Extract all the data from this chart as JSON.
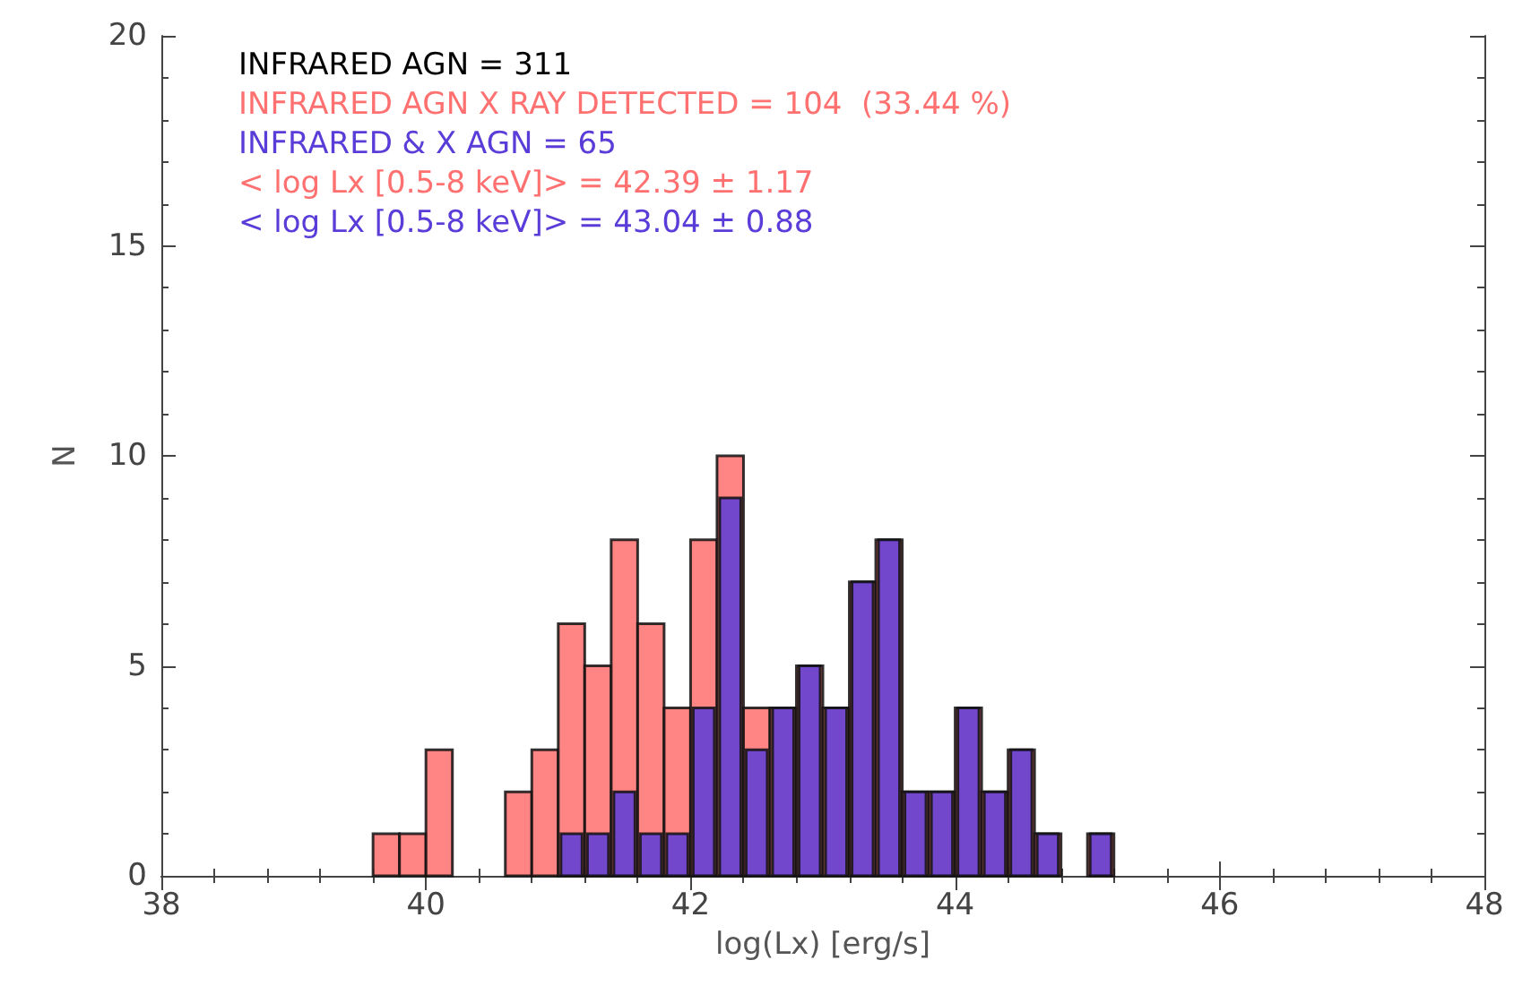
{
  "chart_data": {
    "type": "histogram",
    "xlabel": "log(Lx) [erg/s]",
    "ylabel": "N",
    "bins": [
      39.6,
      39.8,
      40.0,
      40.2,
      40.4,
      40.6,
      40.8,
      41.0,
      41.2,
      41.4,
      41.6,
      41.8,
      42.0,
      42.2,
      42.4,
      42.6,
      42.8,
      43.0,
      43.2,
      43.4,
      43.6,
      43.8,
      44.0,
      44.2,
      44.4,
      44.6,
      44.8,
      45.0,
      45.2
    ],
    "series": [
      {
        "name": "INFRARED AGN X RAY DETECTED = 104  (33.44 %)",
        "color": "#ff7070",
        "values": [
          1,
          1,
          3,
          0,
          0,
          2,
          3,
          6,
          5,
          8,
          6,
          4,
          8,
          10,
          4,
          4,
          5,
          4,
          7,
          8,
          2,
          2,
          4,
          2,
          3,
          1,
          0,
          1
        ]
      },
      {
        "name": "INFRARED & X AGN = 65",
        "color": "#5a3cd8",
        "values": [
          0,
          0,
          0,
          0,
          0,
          0,
          0,
          1,
          1,
          2,
          1,
          1,
          4,
          9,
          3,
          4,
          5,
          4,
          7,
          8,
          2,
          2,
          4,
          2,
          3,
          1,
          0,
          1
        ]
      }
    ],
    "annotations": [
      "INFRARED AGN = 311",
      "< log Lx [0.5-8 keV]> = 42.39 ± 1.17",
      "< log Lx [0.5-8 keV]> = 43.04 ± 0.88"
    ],
    "legend": "top left",
    "xlim": [
      38,
      48
    ],
    "xticks": [
      38,
      40,
      42,
      44,
      46,
      48
    ],
    "ylim": [
      0,
      20
    ],
    "yticks": [
      0,
      5,
      10,
      15,
      20
    ]
  }
}
